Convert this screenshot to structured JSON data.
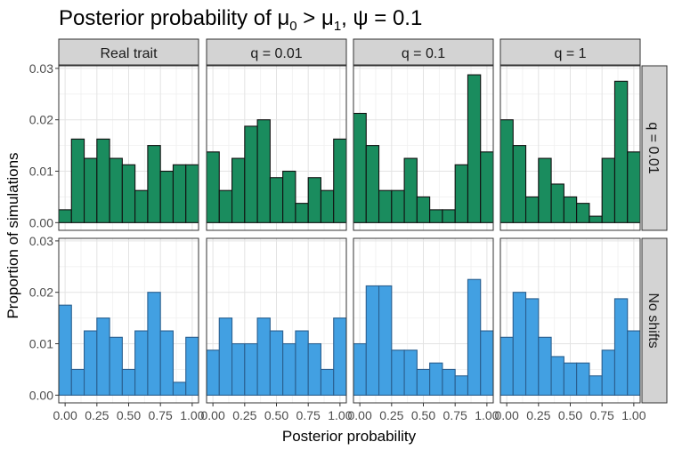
{
  "chart_data": {
    "type": "bar",
    "title_main": "Posterior probability of μ",
    "title_sub0": "0",
    "title_mid": " > μ",
    "title_sub1": "1",
    "title_end": ", ψ = 0.1",
    "xlabel": "Posterior probability",
    "ylabel": "Proportion of simulations",
    "xlim": [
      -0.05,
      1.05
    ],
    "ylim": [
      -0.0015,
      0.0305
    ],
    "x_ticks": [
      "0.00",
      "0.25",
      "0.50",
      "0.75",
      "1.00"
    ],
    "y_ticks": [
      "0.00",
      "0.01",
      "0.02",
      "0.03"
    ],
    "bin_width": 0.1,
    "bin_centers": [
      0,
      0.1,
      0.2,
      0.3,
      0.4,
      0.5,
      0.6,
      0.7,
      0.8,
      0.9,
      1.0
    ],
    "columns": [
      "Real trait",
      "q = 0.01",
      "q = 0.1",
      "q = 1"
    ],
    "rows": [
      {
        "label": "q = 0.01",
        "fill": "#1a8c5e",
        "stroke": "#111111"
      },
      {
        "label": "No shifts",
        "fill": "#42a0e2",
        "stroke": "#2a5f8f"
      }
    ],
    "panels": [
      [
        [
          0.0025,
          0.01625,
          0.0125,
          0.01625,
          0.0125,
          0.01125,
          0.00625,
          0.015,
          0.01,
          0.01125,
          0.01125
        ],
        [
          0.01375,
          0.00625,
          0.0125,
          0.01875,
          0.02,
          0.00875,
          0.01,
          0.00375,
          0.00875,
          0.00625,
          0.01625
        ],
        [
          0.02125,
          0.015,
          0.00625,
          0.00625,
          0.0125,
          0.005,
          0.0025,
          0.0025,
          0.01125,
          0.02875,
          0.01375
        ],
        [
          0.02,
          0.015,
          0.005,
          0.0125,
          0.0075,
          0.005,
          0.00375,
          0.00125,
          0.0125,
          0.0275,
          0.01375
        ]
      ],
      [
        [
          0.0175,
          0.005,
          0.0125,
          0.015,
          0.01125,
          0.005,
          0.0125,
          0.02,
          0.0125,
          0.0025,
          0.01125
        ],
        [
          0.00875,
          0.015,
          0.01,
          0.01,
          0.015,
          0.0125,
          0.01,
          0.0125,
          0.01,
          0.005,
          0.015
        ],
        [
          0.01,
          0.02125,
          0.02125,
          0.00875,
          0.00875,
          0.005,
          0.00625,
          0.005,
          0.00375,
          0.0225,
          0.0125
        ],
        [
          0.01125,
          0.02,
          0.01875,
          0.01125,
          0.0075,
          0.00625,
          0.00625,
          0.00375,
          0.00875,
          0.01875,
          0.0125
        ]
      ]
    ]
  }
}
